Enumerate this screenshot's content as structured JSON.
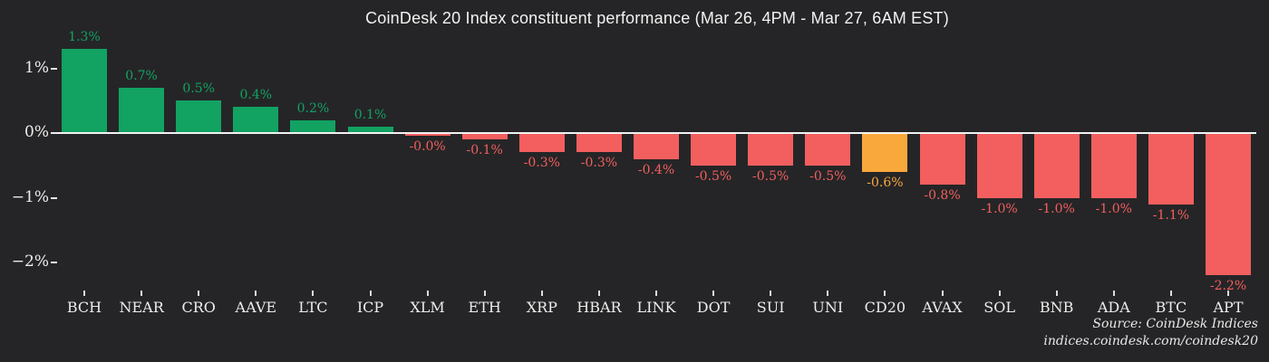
{
  "title": "CoinDesk 20 Index constituent performance (Mar 26, 4PM - Mar 27, 6AM EST)",
  "source": {
    "line1": "Source: CoinDesk Indices",
    "line2": "indices.coindesk.com/coindesk20"
  },
  "colors": {
    "background": "#252527",
    "positive": "#12a262",
    "negative": "#f25f5e",
    "index": "#f9a83c",
    "axis_text": "#ececec",
    "zero_line": "#f2f2f2"
  },
  "y_axis": {
    "ticks": [
      {
        "label": "1%",
        "value": 1
      },
      {
        "label": "0%",
        "value": 0
      },
      {
        "label": "−1%",
        "value": -1
      },
      {
        "label": "−2%",
        "value": -2
      }
    ]
  },
  "chart_data": {
    "type": "bar",
    "title": "CoinDesk 20 Index constituent performance (Mar 26, 4PM - Mar 27, 6AM EST)",
    "xlabel": "",
    "ylabel": "",
    "ylim": [
      -2.55,
      1.45
    ],
    "grid": false,
    "legend": "none",
    "categories": [
      "BCH",
      "NEAR",
      "CRO",
      "AAVE",
      "LTC",
      "ICP",
      "XLM",
      "ETH",
      "XRP",
      "HBAR",
      "LINK",
      "DOT",
      "SUI",
      "UNI",
      "CD20",
      "AVAX",
      "SOL",
      "BNB",
      "ADA",
      "BTC",
      "APT"
    ],
    "values": [
      1.3,
      0.7,
      0.5,
      0.4,
      0.2,
      0.1,
      -0.0,
      -0.1,
      -0.3,
      -0.3,
      -0.4,
      -0.5,
      -0.5,
      -0.5,
      -0.6,
      -0.8,
      -1.0,
      -1.0,
      -1.0,
      -1.1,
      -2.2
    ],
    "labels": [
      "1.3%",
      "0.7%",
      "0.5%",
      "0.4%",
      "0.2%",
      "0.1%",
      "-0.0%",
      "-0.1%",
      "-0.3%",
      "-0.3%",
      "-0.4%",
      "-0.5%",
      "-0.5%",
      "-0.5%",
      "-0.6%",
      "-0.8%",
      "-1.0%",
      "-1.0%",
      "-1.0%",
      "-1.1%",
      "-2.2%"
    ],
    "bar_roles": [
      "positive",
      "positive",
      "positive",
      "positive",
      "positive",
      "positive",
      "negative",
      "negative",
      "negative",
      "negative",
      "negative",
      "negative",
      "negative",
      "negative",
      "index",
      "negative",
      "negative",
      "negative",
      "negative",
      "negative",
      "negative"
    ]
  }
}
